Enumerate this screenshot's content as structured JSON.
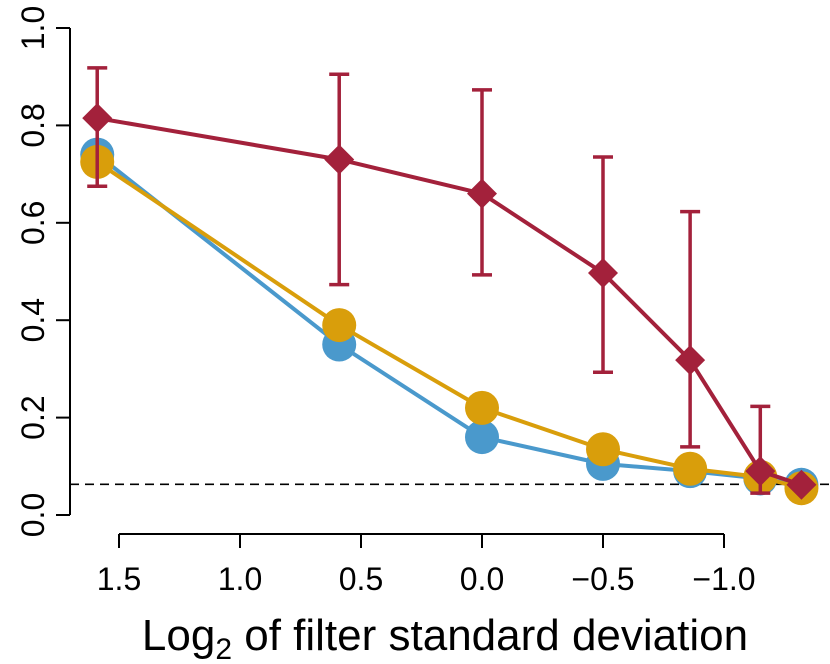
{
  "chart_data": {
    "type": "line",
    "title": "",
    "xlabel": {
      "main": "Log",
      "subscript": "2",
      "rest": " of filter standard deviation"
    },
    "ylabel": "",
    "xlim": [
      1.5,
      -1.3
    ],
    "ylim": [
      0,
      1.0
    ],
    "x_reversed": true,
    "x_ticks": [
      1.5,
      1.0,
      0.5,
      0.0,
      -0.5,
      -1.0
    ],
    "x_tick_labels": [
      "1.5",
      "1.0",
      "0.5",
      "0.0",
      "−0.5",
      "−1.0"
    ],
    "y_ticks": [
      0.0,
      0.2,
      0.4,
      0.6,
      0.8,
      1.0
    ],
    "y_tick_labels": [
      "0.0",
      "0.2",
      "0.4",
      "0.6",
      "0.8",
      "1.0"
    ],
    "grid": false,
    "reference_line": {
      "y": 0.063,
      "style": "dashed"
    },
    "series": [
      {
        "color": "#4a99cc",
        "marker": "circle",
        "points": [
          {
            "x": 1.59,
            "y": 0.74
          },
          {
            "x": 0.59,
            "y": 0.35
          },
          {
            "x": 0.0,
            "y": 0.16
          },
          {
            "x": -0.5,
            "y": 0.105
          },
          {
            "x": -0.86,
            "y": 0.09
          },
          {
            "x": -1.15,
            "y": 0.075
          },
          {
            "x": -1.32,
            "y": 0.062
          }
        ]
      },
      {
        "color": "#d99e0b",
        "marker": "circle",
        "points": [
          {
            "x": 1.59,
            "y": 0.725
          },
          {
            "x": 0.59,
            "y": 0.39
          },
          {
            "x": 0.0,
            "y": 0.22
          },
          {
            "x": -0.5,
            "y": 0.135
          },
          {
            "x": -0.86,
            "y": 0.095
          },
          {
            "x": -1.15,
            "y": 0.078
          },
          {
            "x": -1.32,
            "y": 0.055
          }
        ]
      },
      {
        "color": "#a3213b",
        "marker": "diamond",
        "points": [
          {
            "x": 1.59,
            "y": 0.815,
            "err_low": 0.675,
            "err_high": 0.918
          },
          {
            "x": 0.59,
            "y": 0.73,
            "err_low": 0.473,
            "err_high": 0.905
          },
          {
            "x": 0.0,
            "y": 0.66,
            "err_low": 0.493,
            "err_high": 0.873
          },
          {
            "x": -0.5,
            "y": 0.497,
            "err_low": 0.293,
            "err_high": 0.735
          },
          {
            "x": -0.86,
            "y": 0.318,
            "err_low": 0.14,
            "err_high": 0.623
          },
          {
            "x": -1.15,
            "y": 0.09,
            "err_low": 0.045,
            "err_high": 0.223
          },
          {
            "x": -1.32,
            "y": 0.062
          }
        ]
      }
    ]
  }
}
